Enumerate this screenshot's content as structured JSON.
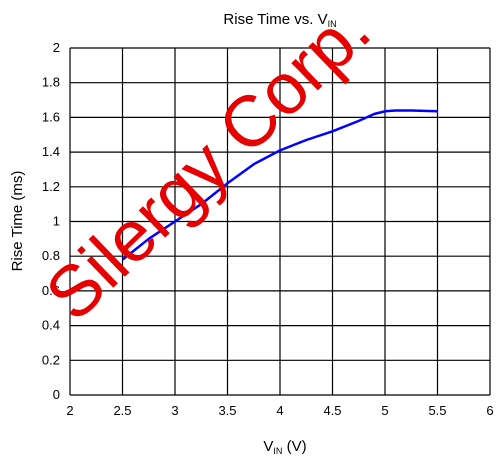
{
  "chart_data": {
    "type": "line",
    "title": "Rise Time vs. V",
    "title_subscript": "IN",
    "xlabel": "V",
    "xlabel_subscript": "IN",
    "xlabel_unit": " (V)",
    "ylabel": "Rise Time (ms)",
    "xlim": [
      2,
      6
    ],
    "ylim": [
      0,
      2
    ],
    "x_ticks": [
      "2",
      "2.5",
      "3",
      "3.5",
      "4",
      "4.5",
      "5",
      "5.5",
      "6"
    ],
    "y_ticks": [
      "0",
      "0.2",
      "0.4",
      "0.6",
      "0.8",
      "1",
      "1.2",
      "1.4",
      "1.6",
      "1.8",
      "2"
    ],
    "grid": true,
    "series": [
      {
        "color": "#0000ff",
        "x": [
          2.5,
          2.75,
          3.0,
          3.25,
          3.5,
          3.75,
          4.0,
          4.25,
          4.5,
          4.75,
          4.9,
          5.0,
          5.1,
          5.25,
          5.5
        ],
        "values": [
          0.78,
          0.9,
          1.0,
          1.1,
          1.22,
          1.33,
          1.41,
          1.47,
          1.52,
          1.58,
          1.62,
          1.635,
          1.64,
          1.64,
          1.635
        ]
      }
    ],
    "watermark": "Silergy Corp.",
    "watermark_color": "#e60000"
  }
}
